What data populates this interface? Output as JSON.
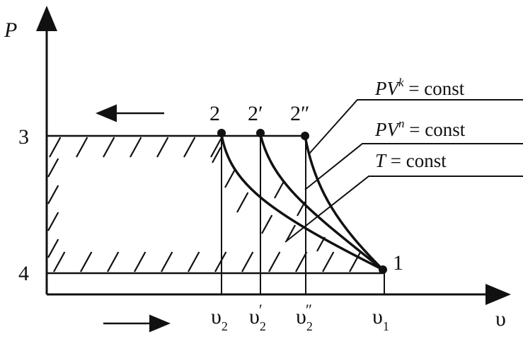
{
  "axes": {
    "y_label": "P",
    "x_label": "υ"
  },
  "pressure_levels": {
    "upper": "3",
    "lower": "4"
  },
  "points": {
    "p2": "2",
    "p2_prime": "2′",
    "p2_double_prime": "2″",
    "p1": "1"
  },
  "volume_ticks": [
    {
      "base": "υ",
      "sub": "2",
      "mark": ""
    },
    {
      "base": "υ",
      "sub": "2",
      "mark": "′"
    },
    {
      "base": "υ",
      "sub": "2",
      "mark": "″"
    },
    {
      "base": "υ",
      "sub": "1",
      "mark": ""
    }
  ],
  "curve_labels": {
    "adiabatic": {
      "pre": "PV",
      "exp": "k",
      "post": " = const"
    },
    "polytropic": {
      "pre": "PV",
      "exp": "n",
      "post": " = const"
    },
    "isothermal": {
      "pre": "T",
      "exp": "",
      "post": " = const"
    }
  },
  "arrows": {
    "top": "left",
    "bottom": "right"
  },
  "colors": {
    "ink": "#111111",
    "background": "#ffffff"
  }
}
